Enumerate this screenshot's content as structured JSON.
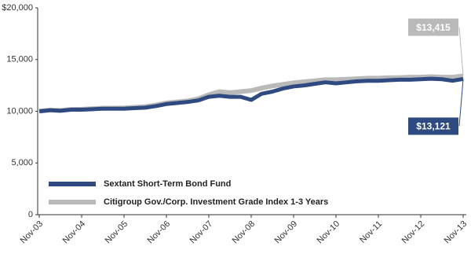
{
  "chart_data": {
    "type": "line",
    "categories": [
      "Nov-03",
      null,
      null,
      null,
      "Nov-04",
      null,
      null,
      null,
      "Nov-05",
      null,
      null,
      null,
      "Nov-06",
      null,
      null,
      null,
      "Nov-07",
      null,
      null,
      null,
      "Nov-08",
      null,
      null,
      null,
      "Nov-09",
      null,
      null,
      null,
      "Nov-10",
      null,
      null,
      null,
      "Nov-11",
      null,
      null,
      null,
      "Nov-12",
      null,
      null,
      null,
      "Nov-13"
    ],
    "series": [
      {
        "name": "Citigroup Gov./Corp. Investment Grade Index 1-3 Years",
        "color": "#b9b9b9",
        "values": [
          10000,
          10120,
          10080,
          10180,
          10200,
          10250,
          10300,
          10300,
          10320,
          10380,
          10450,
          10600,
          10800,
          10900,
          11000,
          11200,
          11600,
          11900,
          11800,
          11900,
          12000,
          12250,
          12450,
          12600,
          12750,
          12850,
          12950,
          13050,
          13050,
          13100,
          13150,
          13200,
          13200,
          13250,
          13250,
          13300,
          13300,
          13350,
          13300,
          13300,
          13415
        ],
        "value_labels": [
          null,
          null,
          null,
          null,
          null,
          null,
          null,
          null,
          null,
          null,
          null,
          null,
          null,
          null,
          null,
          null,
          null,
          null,
          null,
          null,
          null,
          null,
          null,
          null,
          null,
          null,
          null,
          null,
          null,
          null,
          null,
          null,
          null,
          null,
          null,
          null,
          null,
          null,
          null,
          null,
          "$13,415"
        ]
      },
      {
        "name": "Sextant Short-Term Bond Fund",
        "color": "#2e4a80",
        "values": [
          10000,
          10100,
          10050,
          10150,
          10150,
          10200,
          10250,
          10250,
          10250,
          10300,
          10350,
          10500,
          10700,
          10800,
          10900,
          11050,
          11400,
          11500,
          11400,
          11400,
          11100,
          11700,
          11900,
          12200,
          12400,
          12500,
          12650,
          12800,
          12700,
          12800,
          12900,
          12950,
          12950,
          13000,
          13050,
          13050,
          13100,
          13150,
          13100,
          12950,
          13121
        ],
        "value_labels": [
          null,
          null,
          null,
          null,
          null,
          null,
          null,
          null,
          null,
          null,
          null,
          null,
          null,
          null,
          null,
          null,
          null,
          null,
          null,
          null,
          null,
          null,
          null,
          null,
          null,
          null,
          null,
          null,
          null,
          null,
          null,
          null,
          null,
          null,
          null,
          null,
          null,
          null,
          null,
          null,
          "$13,121"
        ]
      }
    ],
    "legend_order": [
      1,
      0
    ],
    "legend": "lower left",
    "ylim": [
      0,
      20000
    ],
    "yticks": [
      0,
      {
        "value": 5000,
        "label": "5,000"
      },
      {
        "value": 10000,
        "label": "10,000"
      },
      {
        "value": 15000,
        "label": "15,000"
      },
      {
        "value": 20000,
        "label": "$20,000"
      }
    ]
  }
}
